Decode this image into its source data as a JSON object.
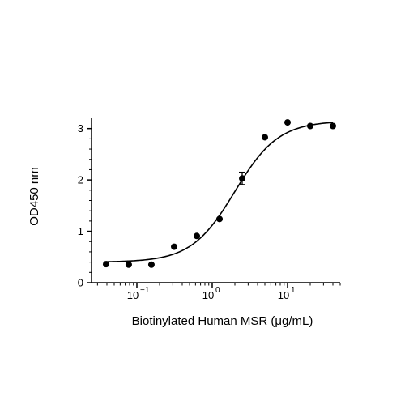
{
  "chart_data": {
    "type": "scatter",
    "xlabel": "Biotinylated Human MSR (μg/mL)",
    "ylabel": "OD450 nm",
    "x_scale": "log10",
    "xlim": [
      0.025,
      50
    ],
    "ylim": [
      0,
      3.2
    ],
    "x_ticks": [
      {
        "value": 0.1,
        "base": "10",
        "exp": "−1"
      },
      {
        "value": 1,
        "base": "10",
        "exp": "0"
      },
      {
        "value": 10,
        "base": "10",
        "exp": "1"
      }
    ],
    "y_ticks": [
      {
        "value": 0,
        "label": "0"
      },
      {
        "value": 1,
        "label": "1"
      },
      {
        "value": 2,
        "label": "2"
      },
      {
        "value": 3,
        "label": "3"
      }
    ],
    "grid": false,
    "legend": "none",
    "series": [
      {
        "points": [
          {
            "x": 0.039,
            "y": 0.36
          },
          {
            "x": 0.078,
            "y": 0.35
          },
          {
            "x": 0.156,
            "y": 0.35
          },
          {
            "x": 0.3125,
            "y": 0.7
          },
          {
            "x": 0.625,
            "y": 0.91
          },
          {
            "x": 1.25,
            "y": 1.24
          },
          {
            "x": 2.5,
            "y": 2.03,
            "err": 0.12
          },
          {
            "x": 5,
            "y": 2.83
          },
          {
            "x": 10,
            "y": 3.12
          },
          {
            "x": 20,
            "y": 3.05
          },
          {
            "x": 40,
            "y": 3.05
          }
        ]
      }
    ],
    "fit_curve": {
      "model": "4PL",
      "bottom": 0.4,
      "top": 3.15,
      "ec50": 2.0,
      "hill": 1.5,
      "x_range": [
        0.039,
        40
      ]
    },
    "colors": {
      "marker": "#000000",
      "line": "#000000",
      "axis": "#000000"
    }
  }
}
